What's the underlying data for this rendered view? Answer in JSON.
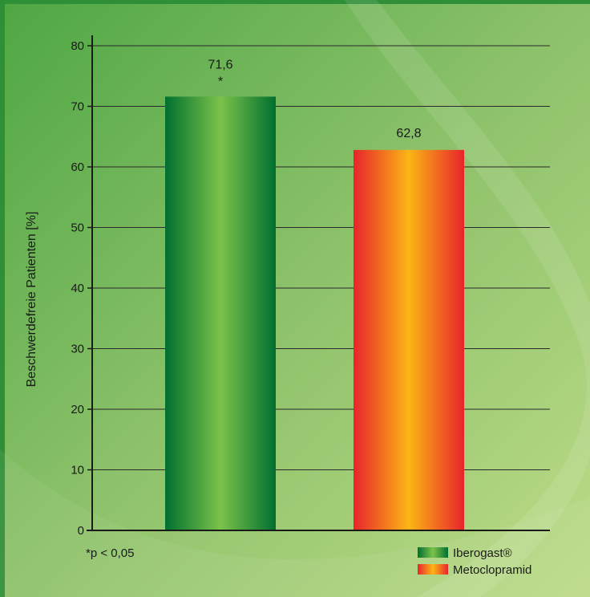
{
  "chart_data": {
    "type": "bar",
    "categories": [
      "Iberogast®",
      "Metoclopramid"
    ],
    "values": [
      71.6,
      62.8
    ],
    "value_labels": [
      "71,6",
      "62,8"
    ],
    "significance_marks": [
      "*",
      ""
    ],
    "ylabel": "Beschwerdefreie Patienten [%]",
    "ylim": [
      0,
      80
    ],
    "yticks": [
      0,
      10,
      20,
      30,
      40,
      50,
      60,
      70,
      80
    ],
    "grid": true,
    "footnote": "*p < 0,05",
    "legend": {
      "placement": "bottom-right",
      "entries": [
        "Iberogast®",
        "Metoclopramid"
      ]
    },
    "colors": {
      "iberogast_dark": "#00702f",
      "iberogast_light": "#7cc24a",
      "metoclopramid_edge": "#e8242b",
      "metoclopramid_center": "#fbb615",
      "background_dark": "#4aa040",
      "background_light": "#b7d884"
    }
  }
}
